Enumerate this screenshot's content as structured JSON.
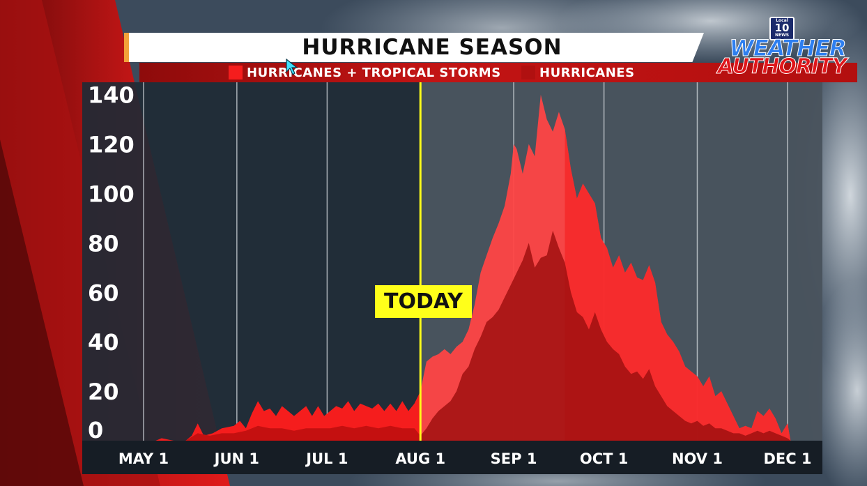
{
  "colors": {
    "total": "#f51d1d",
    "total_after": "#ff4444",
    "hurricanes": "#c41010",
    "hurricanes_after": "#a01010",
    "today_line": "#ffff1a",
    "header_bg": "#ffffff",
    "legend_bg": "#c21414"
  },
  "logo": {
    "local": "Local",
    "number": "10",
    "news": "NEWS",
    "line1": "WEATHER",
    "line2": "AUTHORITY"
  },
  "chart_data": {
    "type": "area",
    "title": "HURRICANE SEASON",
    "legend": [
      {
        "label": "HURRICANES + TROPICAL STORMS",
        "color": "#f51d1d"
      },
      {
        "label": "HURRICANES",
        "color": "#c41010"
      }
    ],
    "legend_position": "top",
    "grid": true,
    "ylim": [
      0,
      145
    ],
    "yticks": [
      "140",
      "120",
      "100",
      "80",
      "60",
      "40",
      "20",
      "0"
    ],
    "ytick_values": [
      140,
      120,
      100,
      80,
      60,
      40,
      20,
      0
    ],
    "x_date_range": [
      "May 1",
      "Dec 1"
    ],
    "xticks": [
      {
        "label": "MAY 1",
        "day": 0
      },
      {
        "label": "JUN 1",
        "day": 31
      },
      {
        "label": "JUL 1",
        "day": 61
      },
      {
        "label": "AUG 1",
        "day": 92
      },
      {
        "label": "SEP 1",
        "day": 123
      },
      {
        "label": "OCT 1",
        "day": 153
      },
      {
        "label": "NOV 1",
        "day": 184
      },
      {
        "label": "DEC 1",
        "day": 214
      }
    ],
    "today": {
      "label": "TODAY",
      "day": 92
    },
    "series": [
      {
        "name": "HURRICANES + TROPICAL STORMS",
        "points": [
          [
            4,
            0
          ],
          [
            6,
            1
          ],
          [
            10,
            0
          ],
          [
            14,
            0
          ],
          [
            16,
            2
          ],
          [
            18,
            7
          ],
          [
            20,
            2
          ],
          [
            23,
            3
          ],
          [
            26,
            5
          ],
          [
            30,
            6
          ],
          [
            32,
            8
          ],
          [
            34,
            5
          ],
          [
            36,
            11
          ],
          [
            38,
            16
          ],
          [
            40,
            12
          ],
          [
            42,
            13
          ],
          [
            44,
            10
          ],
          [
            46,
            14
          ],
          [
            48,
            12
          ],
          [
            50,
            10
          ],
          [
            52,
            12
          ],
          [
            54,
            14
          ],
          [
            56,
            10
          ],
          [
            58,
            14
          ],
          [
            60,
            10
          ],
          [
            62,
            12
          ],
          [
            64,
            14
          ],
          [
            66,
            13
          ],
          [
            68,
            16
          ],
          [
            70,
            12
          ],
          [
            72,
            15
          ],
          [
            74,
            14
          ],
          [
            76,
            13
          ],
          [
            78,
            15
          ],
          [
            80,
            12
          ],
          [
            82,
            15
          ],
          [
            84,
            12
          ],
          [
            86,
            16
          ],
          [
            88,
            12
          ],
          [
            90,
            15
          ],
          [
            92,
            20
          ],
          [
            94,
            32
          ],
          [
            96,
            34
          ],
          [
            98,
            35
          ],
          [
            100,
            37
          ],
          [
            102,
            35
          ],
          [
            104,
            38
          ],
          [
            106,
            40
          ],
          [
            108,
            45
          ],
          [
            110,
            55
          ],
          [
            112,
            68
          ],
          [
            114,
            75
          ],
          [
            116,
            82
          ],
          [
            118,
            88
          ],
          [
            120,
            95
          ],
          [
            122,
            108
          ],
          [
            123,
            120
          ],
          [
            124,
            118
          ],
          [
            126,
            108
          ],
          [
            128,
            120
          ],
          [
            130,
            115
          ],
          [
            132,
            140
          ],
          [
            134,
            130
          ],
          [
            136,
            125
          ],
          [
            138,
            133
          ],
          [
            140,
            126
          ],
          [
            142,
            110
          ],
          [
            144,
            98
          ],
          [
            146,
            104
          ],
          [
            148,
            100
          ],
          [
            150,
            96
          ],
          [
            152,
            82
          ],
          [
            154,
            78
          ],
          [
            156,
            70
          ],
          [
            158,
            75
          ],
          [
            160,
            68
          ],
          [
            162,
            72
          ],
          [
            164,
            66
          ],
          [
            166,
            65
          ],
          [
            168,
            71
          ],
          [
            170,
            64
          ],
          [
            172,
            48
          ],
          [
            174,
            43
          ],
          [
            176,
            40
          ],
          [
            178,
            36
          ],
          [
            180,
            30
          ],
          [
            182,
            28
          ],
          [
            184,
            26
          ],
          [
            186,
            22
          ],
          [
            188,
            26
          ],
          [
            190,
            18
          ],
          [
            192,
            20
          ],
          [
            194,
            15
          ],
          [
            196,
            10
          ],
          [
            198,
            5
          ],
          [
            200,
            6
          ],
          [
            202,
            5
          ],
          [
            204,
            12
          ],
          [
            206,
            10
          ],
          [
            208,
            13
          ],
          [
            210,
            9
          ],
          [
            212,
            3
          ],
          [
            214,
            7
          ],
          [
            215,
            0
          ]
        ]
      },
      {
        "name": "HURRICANES",
        "points": [
          [
            4,
            0
          ],
          [
            10,
            0
          ],
          [
            14,
            0
          ],
          [
            18,
            3
          ],
          [
            22,
            2
          ],
          [
            26,
            3
          ],
          [
            30,
            3
          ],
          [
            34,
            4
          ],
          [
            38,
            6
          ],
          [
            42,
            5
          ],
          [
            46,
            5
          ],
          [
            50,
            4
          ],
          [
            54,
            5
          ],
          [
            58,
            5
          ],
          [
            62,
            5
          ],
          [
            66,
            6
          ],
          [
            70,
            5
          ],
          [
            74,
            6
          ],
          [
            78,
            5
          ],
          [
            82,
            6
          ],
          [
            86,
            5
          ],
          [
            90,
            5
          ],
          [
            92,
            2
          ],
          [
            94,
            5
          ],
          [
            96,
            9
          ],
          [
            98,
            12
          ],
          [
            100,
            14
          ],
          [
            102,
            16
          ],
          [
            104,
            20
          ],
          [
            106,
            27
          ],
          [
            108,
            30
          ],
          [
            110,
            37
          ],
          [
            112,
            42
          ],
          [
            114,
            48
          ],
          [
            116,
            50
          ],
          [
            118,
            53
          ],
          [
            120,
            58
          ],
          [
            122,
            63
          ],
          [
            124,
            68
          ],
          [
            126,
            73
          ],
          [
            128,
            80
          ],
          [
            130,
            70
          ],
          [
            132,
            74
          ],
          [
            134,
            75
          ],
          [
            136,
            85
          ],
          [
            138,
            78
          ],
          [
            140,
            72
          ],
          [
            142,
            60
          ],
          [
            144,
            52
          ],
          [
            146,
            50
          ],
          [
            148,
            45
          ],
          [
            150,
            52
          ],
          [
            152,
            45
          ],
          [
            154,
            40
          ],
          [
            156,
            37
          ],
          [
            158,
            35
          ],
          [
            160,
            30
          ],
          [
            162,
            27
          ],
          [
            164,
            28
          ],
          [
            166,
            25
          ],
          [
            168,
            29
          ],
          [
            170,
            22
          ],
          [
            172,
            18
          ],
          [
            174,
            14
          ],
          [
            176,
            12
          ],
          [
            178,
            10
          ],
          [
            180,
            8
          ],
          [
            182,
            7
          ],
          [
            184,
            8
          ],
          [
            186,
            6
          ],
          [
            188,
            7
          ],
          [
            190,
            5
          ],
          [
            192,
            5
          ],
          [
            194,
            4
          ],
          [
            196,
            3
          ],
          [
            198,
            3
          ],
          [
            200,
            2
          ],
          [
            202,
            3
          ],
          [
            204,
            4
          ],
          [
            206,
            3
          ],
          [
            208,
            4
          ],
          [
            210,
            3
          ],
          [
            212,
            2
          ],
          [
            214,
            1
          ],
          [
            215,
            0
          ]
        ]
      }
    ]
  }
}
